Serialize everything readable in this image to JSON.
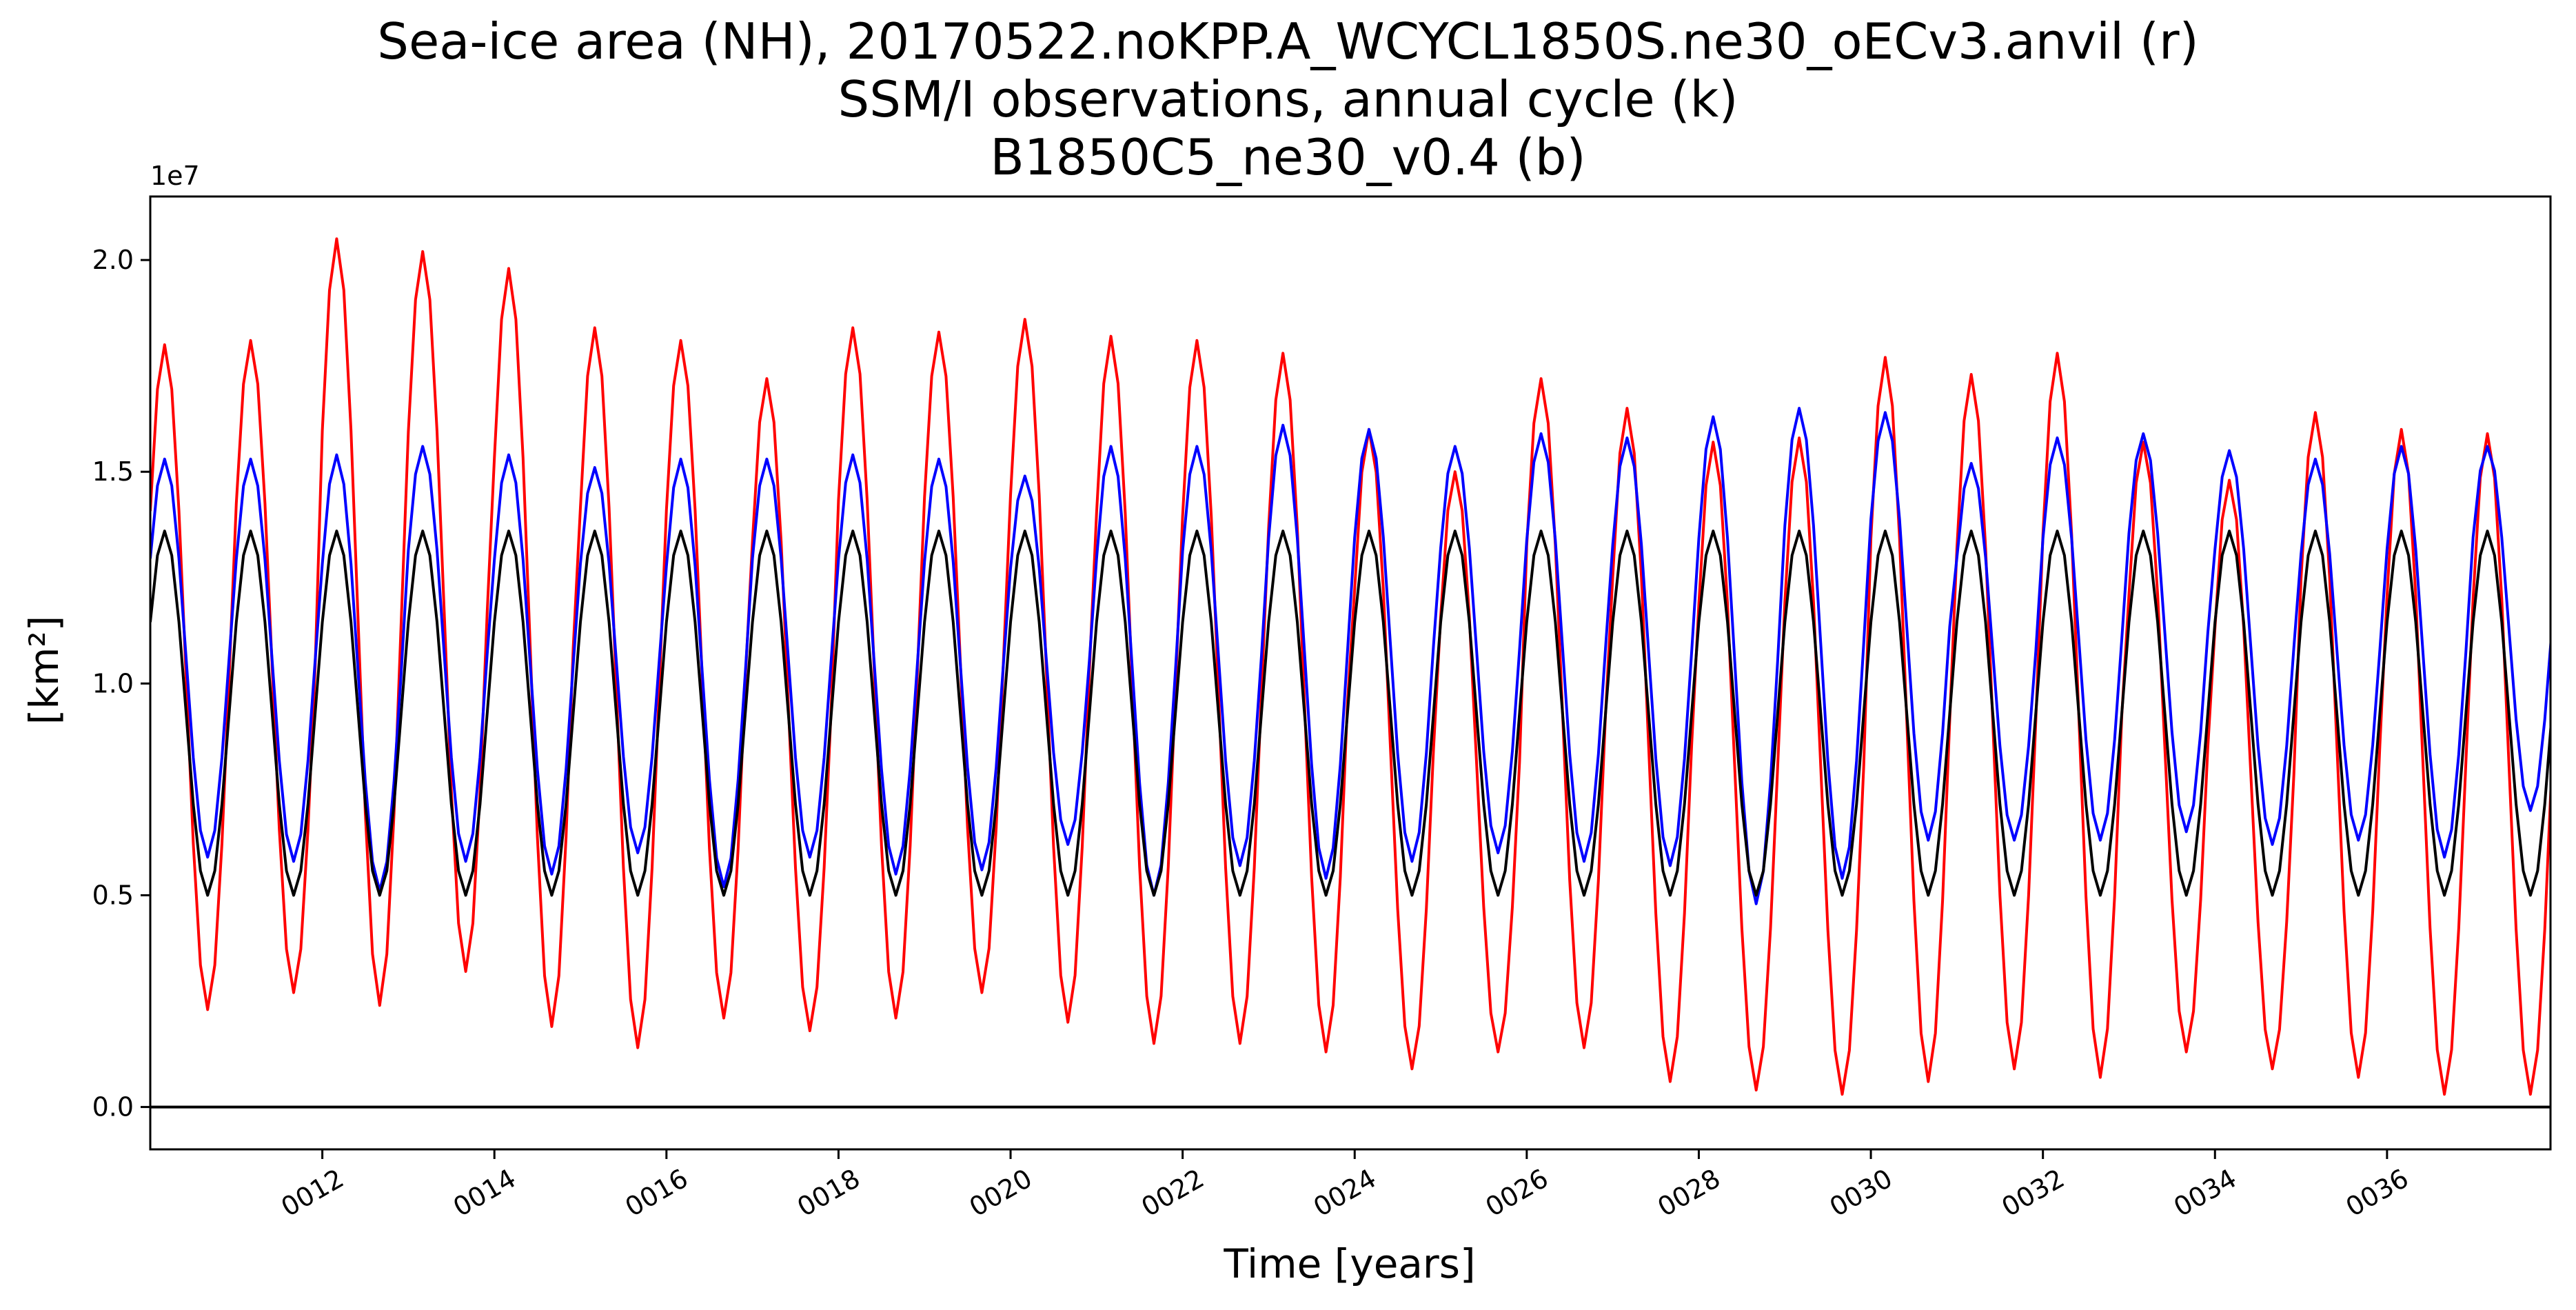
{
  "chart_data": {
    "type": "line",
    "title": [
      "Sea-ice area (NH), 20170522.noKPP.A_WCYCL1850S.ne30_oECv3.anvil (r)",
      "SSM/I observations, annual cycle (k)",
      "B1850C5_ne30_v0.4 (b)"
    ],
    "xlabel": "Time [years]",
    "ylabel": "[km²]",
    "y_scale_label": "1e7",
    "xlim": [
      10.0,
      37.9
    ],
    "ylim": [
      -1000000,
      21500000
    ],
    "x_ticks": [
      12,
      14,
      16,
      18,
      20,
      22,
      24,
      26,
      28,
      30,
      32,
      34,
      36
    ],
    "x_tick_labels": [
      "0012",
      "0014",
      "0016",
      "0018",
      "0020",
      "0022",
      "0024",
      "0026",
      "0028",
      "0030",
      "0032",
      "0034",
      "0036"
    ],
    "y_ticks": [
      0,
      5000000,
      10000000,
      15000000,
      20000000
    ],
    "y_tick_labels": [
      "0.0",
      "0.5",
      "1.0",
      "1.5",
      "2.0"
    ],
    "grid": false,
    "legend": "none",
    "reference_line_y": 0,
    "series": [
      {
        "color": "#ff0000",
        "x_start": 10.0,
        "step_years": 0.0833333,
        "annual_maxima": [
          18000000,
          18100000,
          20500000,
          20200000,
          19800000,
          18400000,
          18100000,
          17200000,
          18400000,
          18300000,
          18600000,
          18200000,
          18100000,
          17800000,
          16000000,
          15000000,
          17200000,
          16500000,
          15700000,
          15800000,
          17700000,
          17300000,
          17800000,
          15700000,
          14800000,
          16400000,
          16000000,
          15900000
        ],
        "annual_minima": [
          2300000,
          2700000,
          2400000,
          3200000,
          1900000,
          1400000,
          2100000,
          1800000,
          2100000,
          2700000,
          2000000,
          1500000,
          1500000,
          1300000,
          900000,
          1300000,
          1400000,
          600000,
          400000,
          300000,
          600000,
          900000,
          700000,
          1300000,
          900000,
          700000,
          300000,
          300000
        ]
      },
      {
        "color": "#0000ff",
        "x_start": 10.0,
        "step_years": 0.0833333,
        "annual_maxima": [
          15300000,
          15300000,
          15400000,
          15600000,
          15400000,
          15100000,
          15300000,
          15300000,
          15400000,
          15300000,
          14900000,
          15600000,
          15600000,
          16100000,
          16000000,
          15600000,
          15900000,
          15800000,
          16300000,
          16500000,
          16400000,
          15200000,
          15800000,
          15900000,
          15500000,
          15300000,
          15600000,
          15600000
        ],
        "annual_minima": [
          5900000,
          5800000,
          5100000,
          5800000,
          5500000,
          6000000,
          5200000,
          5900000,
          5500000,
          5600000,
          6200000,
          5000000,
          5700000,
          5400000,
          5800000,
          6000000,
          5800000,
          5700000,
          4800000,
          5400000,
          6300000,
          6300000,
          6300000,
          6500000,
          6200000,
          6300000,
          5900000,
          7000000
        ]
      },
      {
        "color": "#000000",
        "x_start": 10.0,
        "step_years": 0.0833333,
        "annual_maxima": [
          13600000,
          13600000,
          13600000,
          13600000,
          13600000,
          13600000,
          13600000,
          13600000,
          13600000,
          13600000,
          13600000,
          13600000,
          13600000,
          13600000,
          13600000,
          13600000,
          13600000,
          13600000,
          13600000,
          13600000,
          13600000,
          13600000,
          13600000,
          13600000,
          13600000,
          13600000,
          13600000,
          13600000
        ],
        "annual_minima": [
          5000000,
          5000000,
          5000000,
          5000000,
          5000000,
          5000000,
          5000000,
          5000000,
          5000000,
          5000000,
          5000000,
          5000000,
          5000000,
          5000000,
          5000000,
          5000000,
          5000000,
          5000000,
          5000000,
          5000000,
          5000000,
          5000000,
          5000000,
          5000000,
          5000000,
          5000000,
          5000000,
          5000000
        ]
      }
    ]
  }
}
